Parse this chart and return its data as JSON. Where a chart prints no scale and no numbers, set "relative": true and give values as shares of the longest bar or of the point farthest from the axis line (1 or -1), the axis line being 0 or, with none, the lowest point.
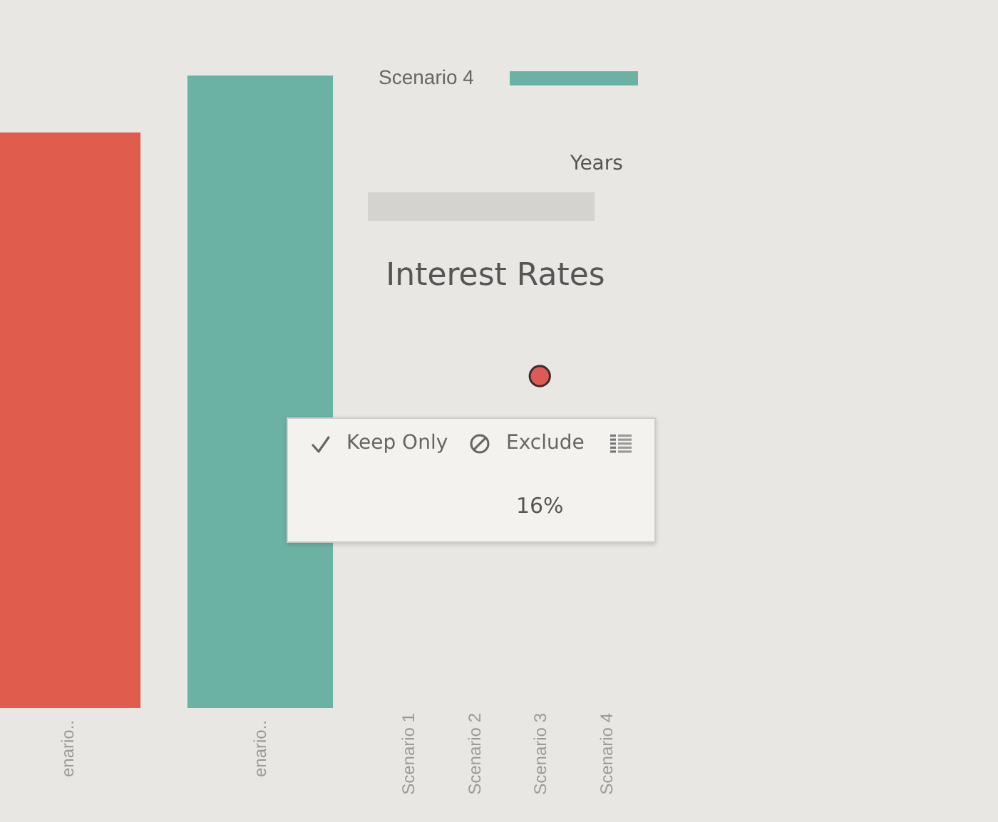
{
  "chart_data": [
    {
      "type": "bar",
      "relative": true,
      "categories": [
        "enario..",
        "enario.."
      ],
      "series": [
        {
          "color": "#e05c4d",
          "values": [
            0.91,
            null
          ]
        },
        {
          "name": "Scenario 4",
          "color": "#6bb2a5",
          "values": [
            null,
            1
          ]
        }
      ],
      "legend": "top right"
    },
    {
      "type": "other",
      "title": "Interest Rates",
      "categories": [
        "Scenario 1",
        "Scenario 2",
        "Scenario 3",
        "Scenario 4"
      ],
      "values": [
        null,
        null,
        16,
        null
      ],
      "value_labels": [
        null,
        null,
        "16%",
        null
      ],
      "color": "#e05a55",
      "annotations": [
        "Years",
        "Keep Only",
        "Exclude"
      ]
    }
  ]
}
